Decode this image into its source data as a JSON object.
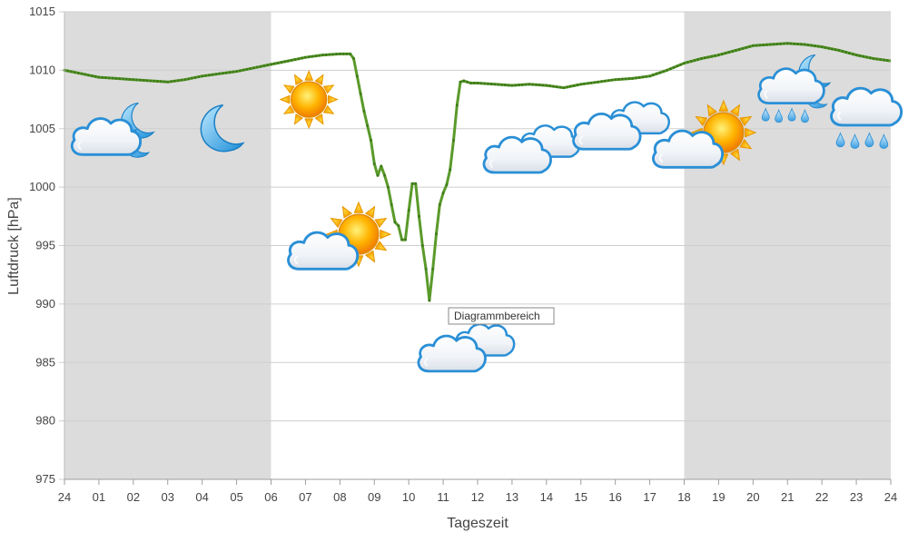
{
  "chart_data": {
    "type": "line",
    "xlabel": "Tageszeit",
    "ylabel": "Luftdruck [hPa]",
    "ylim": [
      975,
      1015
    ],
    "y_ticks": [
      975,
      980,
      985,
      990,
      995,
      1000,
      1005,
      1010,
      1015
    ],
    "x_ticks": [
      "24",
      "01",
      "02",
      "03",
      "04",
      "05",
      "06",
      "07",
      "08",
      "09",
      "10",
      "11",
      "12",
      "13",
      "14",
      "15",
      "16",
      "17",
      "18",
      "19",
      "20",
      "21",
      "22",
      "23",
      "24"
    ],
    "x_range_hours": [
      0,
      24
    ],
    "grid": true,
    "night_shading": [
      [
        0,
        6
      ],
      [
        18,
        24
      ]
    ],
    "night_color": "#dcdcdc",
    "line_color": "#5a9a2a",
    "marker_color": "#3d7a1a",
    "series": [
      {
        "values_x": [
          0,
          0.5,
          1,
          1.5,
          2,
          2.5,
          3,
          3.5,
          4,
          4.5,
          5,
          5.5,
          6,
          6.5,
          7,
          7.5,
          8,
          8.3,
          8.4,
          8.5,
          8.7,
          8.9,
          9.0,
          9.1,
          9.2,
          9.3,
          9.4,
          9.5,
          9.6,
          9.7,
          9.8,
          9.9,
          10.0,
          10.1,
          10.2,
          10.3,
          10.4,
          10.5,
          10.6,
          10.7,
          10.8,
          10.9,
          11.0,
          11.1,
          11.2,
          11.3,
          11.4,
          11.5,
          11.6,
          11.7,
          11.8,
          12,
          12.5,
          13,
          13.5,
          14,
          14.5,
          15,
          15.5,
          16,
          16.5,
          17,
          17.5,
          18,
          18.5,
          19,
          19.5,
          20,
          20.5,
          21,
          21.5,
          22,
          22.5,
          23,
          23.5,
          24
        ],
        "values": [
          1010.0,
          1009.7,
          1009.4,
          1009.3,
          1009.2,
          1009.1,
          1009.0,
          1009.2,
          1009.5,
          1009.7,
          1009.9,
          1010.2,
          1010.5,
          1010.8,
          1011.1,
          1011.3,
          1011.4,
          1011.4,
          1011.0,
          1009.5,
          1006.5,
          1004.0,
          1002.0,
          1001.0,
          1001.8,
          1001.0,
          1000.0,
          998.5,
          997.0,
          996.7,
          995.5,
          995.5,
          998.0,
          1000.3,
          1000.3,
          997.5,
          995.0,
          993.0,
          990.3,
          993.0,
          996.0,
          998.5,
          999.5,
          1000.2,
          1001.5,
          1004.0,
          1007.0,
          1009.0,
          1009.1,
          1009.0,
          1008.9,
          1008.9,
          1008.8,
          1008.7,
          1008.8,
          1008.7,
          1008.5,
          1008.8,
          1009.0,
          1009.2,
          1009.3,
          1009.5,
          1010.0,
          1010.6,
          1011.0,
          1011.3,
          1011.7,
          1012.1,
          1012.2,
          1012.3,
          1012.2,
          1012.0,
          1011.7,
          1011.3,
          1011.0,
          1010.8
        ]
      }
    ],
    "annotations": [
      {
        "label": "Diagrammbereich"
      }
    ],
    "weather_icons": [
      {
        "icon": "cloudy-night-icon",
        "hour": 1.3,
        "value": 1004.8
      },
      {
        "icon": "moon-icon",
        "hour": 4.5,
        "value": 1005.0
      },
      {
        "icon": "sun-icon",
        "hour": 7.1,
        "value": 1007.5
      },
      {
        "icon": "partly-sunny-icon",
        "hour": 7.7,
        "value": 995.5
      },
      {
        "icon": "cloudy-icon",
        "hour": 11.5,
        "value": 986.0
      },
      {
        "icon": "cloudy-icon",
        "hour": 13.4,
        "value": 1003.0
      },
      {
        "icon": "cloudy-icon",
        "hour": 16.0,
        "value": 1005.0
      },
      {
        "icon": "partly-sunny-icon",
        "hour": 18.3,
        "value": 1004.2
      },
      {
        "icon": "night-rain-icon",
        "hour": 21.2,
        "value": 1007.5
      },
      {
        "icon": "rain-icon",
        "hour": 23.3,
        "value": 1006.5
      }
    ]
  }
}
